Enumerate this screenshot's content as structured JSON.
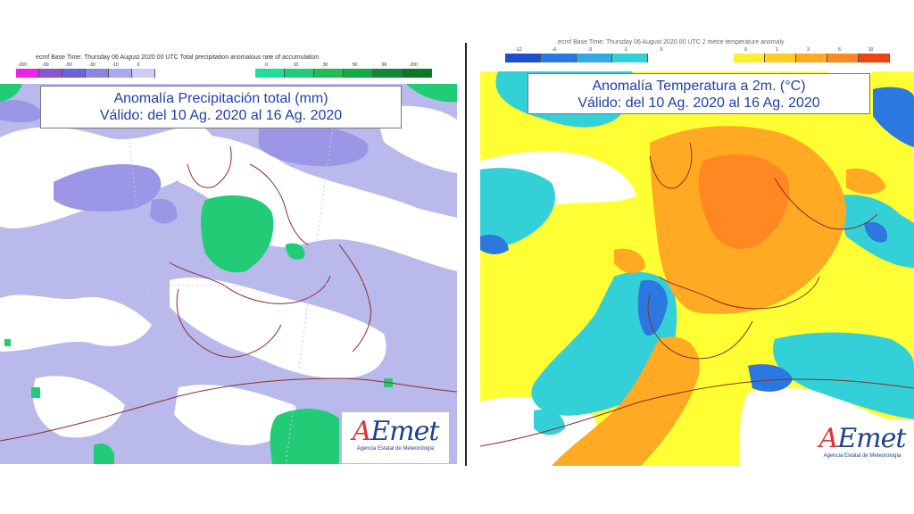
{
  "left_panel": {
    "header": "ecmf Base Time: Thursday 06 August 2020 00 UTC Total precipitation anomalous rate of accumulation",
    "legend_negative": {
      "colors": [
        "#ee22ee",
        "#8a55cc",
        "#6a63d8",
        "#8a85e0",
        "#aaa8ee",
        "#ccccf6"
      ],
      "ticks": [
        "-200",
        "-90",
        "-50",
        "-30",
        "-10",
        "0"
      ]
    },
    "legend_positive": {
      "colors": [
        "#22dd99",
        "#22cc77",
        "#22bb55",
        "#11aa44",
        "#118833",
        "#0a7722"
      ],
      "ticks": [
        "0",
        "10",
        "30",
        "50",
        "90",
        "200"
      ]
    },
    "title_line1": "Anomalía Precipitación total (mm)",
    "title_line2": "Válido: del 10 Ag. 2020 al 16 Ag. 2020",
    "logo_text": "AEmet",
    "logo_subtitle": "Agencia Estatal de Meteorología",
    "colors": {
      "background": "#b9b9ec",
      "dry": "#9b97e6",
      "neutral": "#ffffff",
      "wet": "#22cc77",
      "coast": "#8b2e2e"
    }
  },
  "right_panel": {
    "header": "ecmf Base Time: Thursday 06 August 2020 00 UTC 2 metre temperature anomaly",
    "legend_negative": {
      "colors": [
        "#1f4fcc",
        "#2a78e0",
        "#33a8e6",
        "#33d0d8"
      ],
      "ticks": [
        "-12",
        "-6",
        "-3",
        "-1",
        "0"
      ]
    },
    "legend_positive": {
      "colors": [
        "#ffee33",
        "#ffcc22",
        "#ffaa22",
        "#ff8822",
        "#ee4411"
      ],
      "ticks": [
        "0",
        "1",
        "3",
        "6",
        "10"
      ]
    },
    "title_line1": "Anomalía Temperatura a 2m. (°C)",
    "title_line2": "Válido: del 10 Ag. 2020 al 16 Ag. 2020",
    "logo_text": "AEmet",
    "logo_subtitle": "Agencia Estatal de Meteorología",
    "colors": {
      "warm": "#ffff33",
      "warmer": "#ffaa22",
      "hot": "#ff8822",
      "cool": "#33d0d8",
      "cold": "#2a78e0",
      "neutral": "#ffffff",
      "coast": "#8b2e2e"
    }
  }
}
